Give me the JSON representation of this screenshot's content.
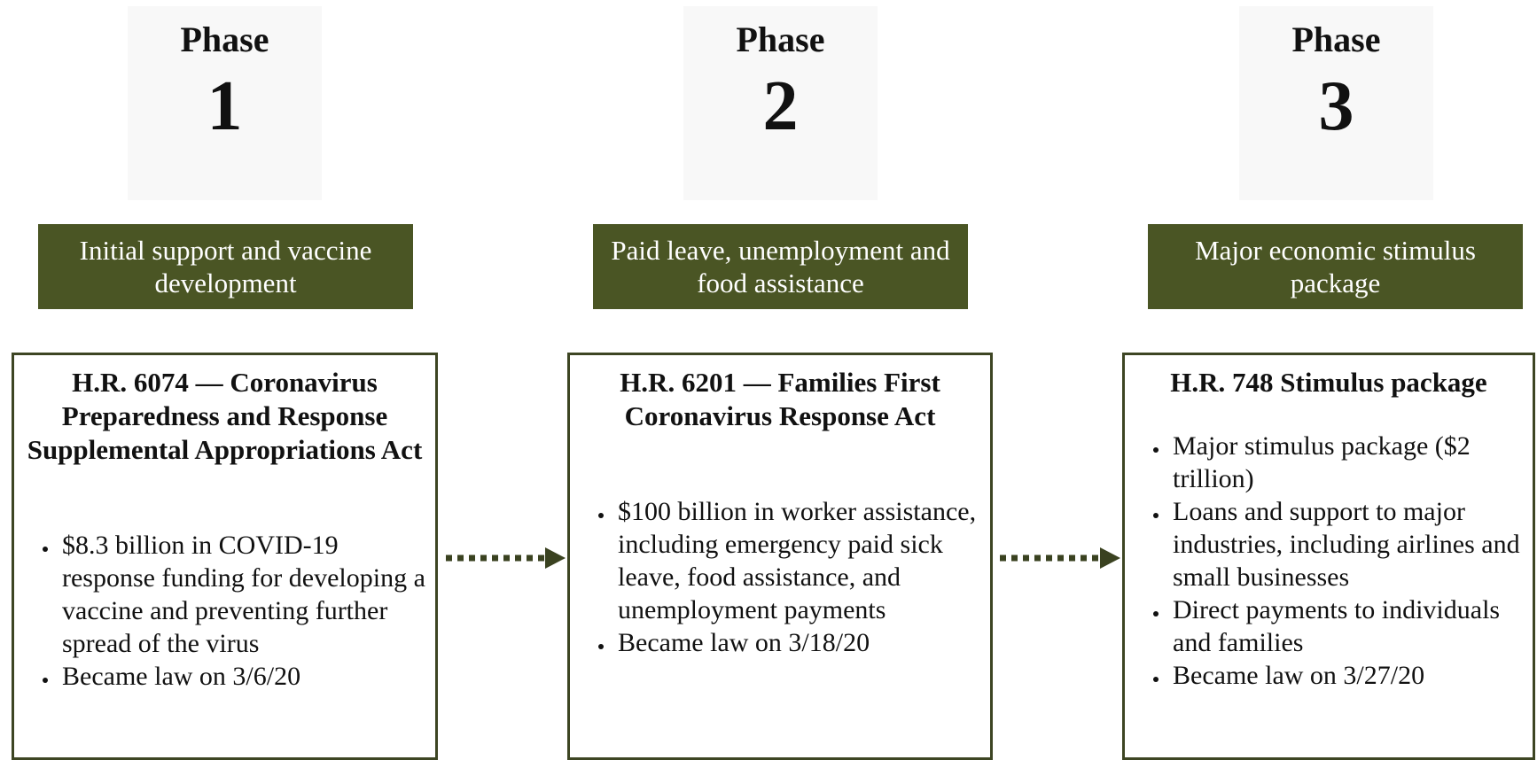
{
  "phases": [
    {
      "label": "Phase",
      "number": "1",
      "banner": "Initial support and vaccine development",
      "title": "H.R. 6074 — Coronavirus Preparedness and Response Supplemental Appropriations Act",
      "bullets": [
        "$8.3 billion in COVID-19 response funding for developing a vaccine and preventing further spread of the virus",
        "Became law on 3/6/20"
      ]
    },
    {
      "label": "Phase",
      "number": "2",
      "banner": "Paid leave, unemployment and food assistance",
      "title": "H.R. 6201 — Families First Coronavirus Response Act",
      "bullets": [
        "$100 billion in worker assistance, including emergency paid sick leave, food assistance, and unemployment payments",
        "Became law on 3/18/20"
      ]
    },
    {
      "label": "Phase",
      "number": "3",
      "banner": "Major economic stimulus package",
      "title": "H.R. 748 Stimulus package",
      "bullets": [
        "Major stimulus package ($2 trillion)",
        "Loans and support to major industries, including airlines and small businesses",
        "Direct payments to individuals and families",
        "Became law on 3/27/20"
      ]
    }
  ]
}
